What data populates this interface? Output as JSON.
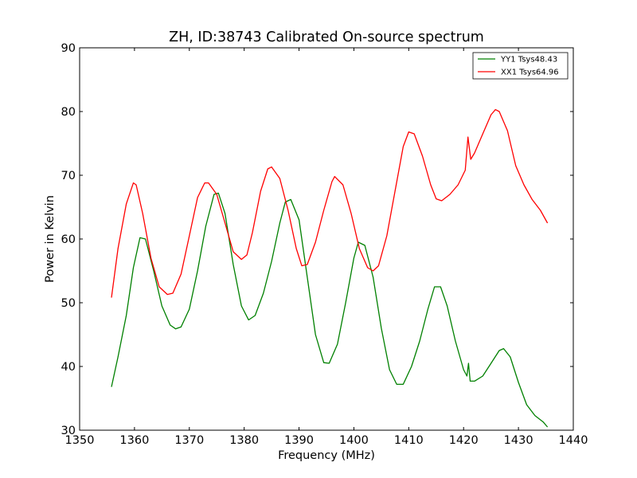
{
  "chart_data": {
    "type": "line",
    "title": "ZH, ID:38743 Calibrated On-source spectrum",
    "xlabel": "Frequency (MHz)",
    "ylabel": "Power in Kelvin",
    "xlim": [
      1350,
      1440
    ],
    "ylim": [
      30,
      90
    ],
    "xticks": [
      1350,
      1360,
      1370,
      1380,
      1390,
      1400,
      1410,
      1420,
      1430,
      1440
    ],
    "yticks": [
      30,
      40,
      50,
      60,
      70,
      80,
      90
    ],
    "grid": false,
    "legend_position": "top-right",
    "series": [
      {
        "name": "YY1 Tsys48.43",
        "color": "#008000",
        "x": [
          1355.8,
          1357.0,
          1358.5,
          1359.8,
          1361.0,
          1362.0,
          1363.5,
          1365.0,
          1366.5,
          1367.5,
          1368.5,
          1370.0,
          1371.5,
          1373.0,
          1374.5,
          1375.3,
          1376.5,
          1378.0,
          1379.5,
          1380.8,
          1382.0,
          1383.5,
          1385.0,
          1386.5,
          1387.5,
          1388.5,
          1390.0,
          1391.5,
          1393.0,
          1394.5,
          1395.5,
          1397.0,
          1398.5,
          1400.0,
          1400.8,
          1402.0,
          1403.5,
          1405.0,
          1406.5,
          1407.8,
          1409.0,
          1410.5,
          1412.0,
          1413.5,
          1414.7,
          1415.8,
          1417.0,
          1418.5,
          1420.0,
          1420.6,
          1420.9,
          1421.2,
          1422.0,
          1423.5,
          1425.0,
          1426.5,
          1427.3,
          1428.5,
          1430.0,
          1431.5,
          1433.0,
          1434.5,
          1435.3
        ],
        "values": [
          36.8,
          41.5,
          48.0,
          55.5,
          60.2,
          60.0,
          55.0,
          49.5,
          46.5,
          45.9,
          46.2,
          49.0,
          55.0,
          62.0,
          67.0,
          67.2,
          64.0,
          56.0,
          49.5,
          47.3,
          48.0,
          51.5,
          56.5,
          62.5,
          65.8,
          66.2,
          63.0,
          54.0,
          45.0,
          40.6,
          40.5,
          43.5,
          50.0,
          57.0,
          59.5,
          59.0,
          54.0,
          46.0,
          39.5,
          37.2,
          37.2,
          40.0,
          44.0,
          49.0,
          52.5,
          52.5,
          49.5,
          44.0,
          39.5,
          38.5,
          40.5,
          37.7,
          37.7,
          38.5,
          40.5,
          42.5,
          42.8,
          41.5,
          37.5,
          34.0,
          32.3,
          31.3,
          30.5
        ]
      },
      {
        "name": "XX1 Tsys64.96",
        "color": "#ff0000",
        "x": [
          1355.8,
          1357.0,
          1358.5,
          1359.8,
          1360.3,
          1361.5,
          1363.0,
          1364.5,
          1366.0,
          1367.0,
          1368.5,
          1370.0,
          1371.5,
          1372.8,
          1373.5,
          1375.0,
          1376.5,
          1378.0,
          1379.5,
          1380.5,
          1381.5,
          1383.0,
          1384.3,
          1385.0,
          1386.5,
          1388.0,
          1389.5,
          1390.5,
          1391.5,
          1393.0,
          1394.5,
          1396.0,
          1396.5,
          1398.0,
          1399.5,
          1401.0,
          1402.5,
          1403.5,
          1404.5,
          1406.0,
          1407.5,
          1409.0,
          1410.0,
          1411.0,
          1412.5,
          1414.0,
          1415.0,
          1416.0,
          1417.5,
          1419.0,
          1420.3,
          1420.8,
          1421.3,
          1422.0,
          1423.5,
          1425.0,
          1425.8,
          1426.5,
          1428.0,
          1429.5,
          1431.0,
          1432.5,
          1434.0,
          1435.3
        ],
        "values": [
          50.8,
          58.5,
          65.5,
          68.8,
          68.5,
          64.0,
          57.0,
          52.5,
          51.3,
          51.5,
          54.5,
          60.5,
          66.5,
          68.8,
          68.8,
          67.0,
          62.5,
          58.0,
          56.8,
          57.5,
          61.0,
          67.5,
          71.0,
          71.3,
          69.5,
          64.5,
          58.5,
          55.8,
          56.0,
          59.5,
          64.5,
          69.0,
          69.8,
          68.5,
          64.0,
          58.5,
          55.5,
          55.0,
          55.8,
          60.5,
          67.5,
          74.5,
          76.8,
          76.5,
          73.0,
          68.5,
          66.3,
          66.0,
          67.0,
          68.5,
          70.8,
          76.0,
          72.5,
          73.5,
          76.5,
          79.5,
          80.3,
          80.0,
          77.0,
          71.5,
          68.5,
          66.2,
          64.5,
          62.5
        ]
      }
    ]
  }
}
